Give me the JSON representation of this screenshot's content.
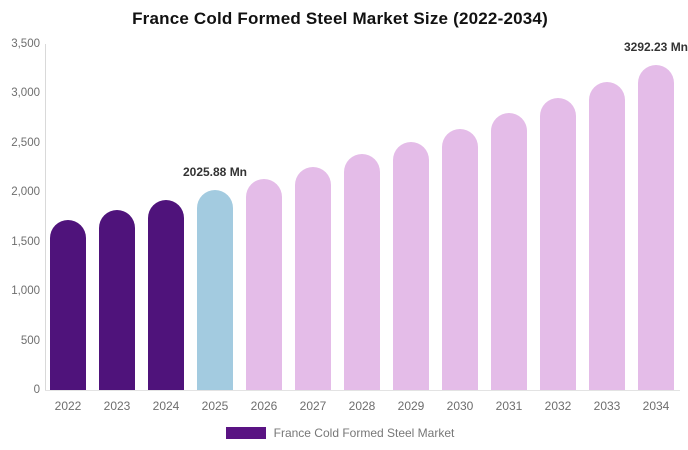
{
  "chart_data": {
    "type": "bar",
    "title": "France Cold Formed Steel Market Size (2022-2034)",
    "xlabel": "",
    "ylabel": "",
    "unit": "Mn",
    "ylim": [
      0,
      3500
    ],
    "grid": false,
    "categories": [
      "2022",
      "2023",
      "2024",
      "2025",
      "2026",
      "2027",
      "2028",
      "2029",
      "2030",
      "2031",
      "2032",
      "2033",
      "2034"
    ],
    "series": [
      {
        "name": "France Cold Formed Steel Market",
        "values": [
          1720,
          1818,
          1920,
          2025.88,
          2136,
          2260,
          2384,
          2508,
          2645,
          2800,
          2954,
          3115,
          3292.23
        ]
      }
    ],
    "bar_colors": [
      "#4f137b",
      "#4f137b",
      "#4f137b",
      "#a3cbe0",
      "#e4bce8",
      "#e4bce8",
      "#e4bce8",
      "#e4bce8",
      "#e4bce8",
      "#e4bce8",
      "#e4bce8",
      "#e4bce8",
      "#e4bce8"
    ],
    "yticks": [
      {
        "value": 0,
        "label": "0"
      },
      {
        "value": 500,
        "label": "500"
      },
      {
        "value": 1000,
        "label": "1,000"
      },
      {
        "value": 1500,
        "label": "1,500"
      },
      {
        "value": 2000,
        "label": "2,000"
      },
      {
        "value": 2500,
        "label": "2,500"
      },
      {
        "value": 3000,
        "label": "3,000"
      },
      {
        "value": 3500,
        "label": "3,500"
      }
    ],
    "annotations": [
      {
        "category": "2025",
        "text": "2025.88 Mn"
      },
      {
        "category": "2034",
        "text": "3292.23 Mn"
      }
    ],
    "legend": {
      "position": "bottom",
      "label": "France Cold Formed Steel Market",
      "swatch_color": "#5a1383"
    },
    "colors": {
      "historical_bar": "#4f137b",
      "current_year_bar": "#a3cbe0",
      "forecast_bar": "#e4bce8",
      "axis_line": "#d9d9d9",
      "tick_label": "#6e6e6e",
      "annotation_text": "#333333",
      "title_text": "#111111"
    }
  }
}
